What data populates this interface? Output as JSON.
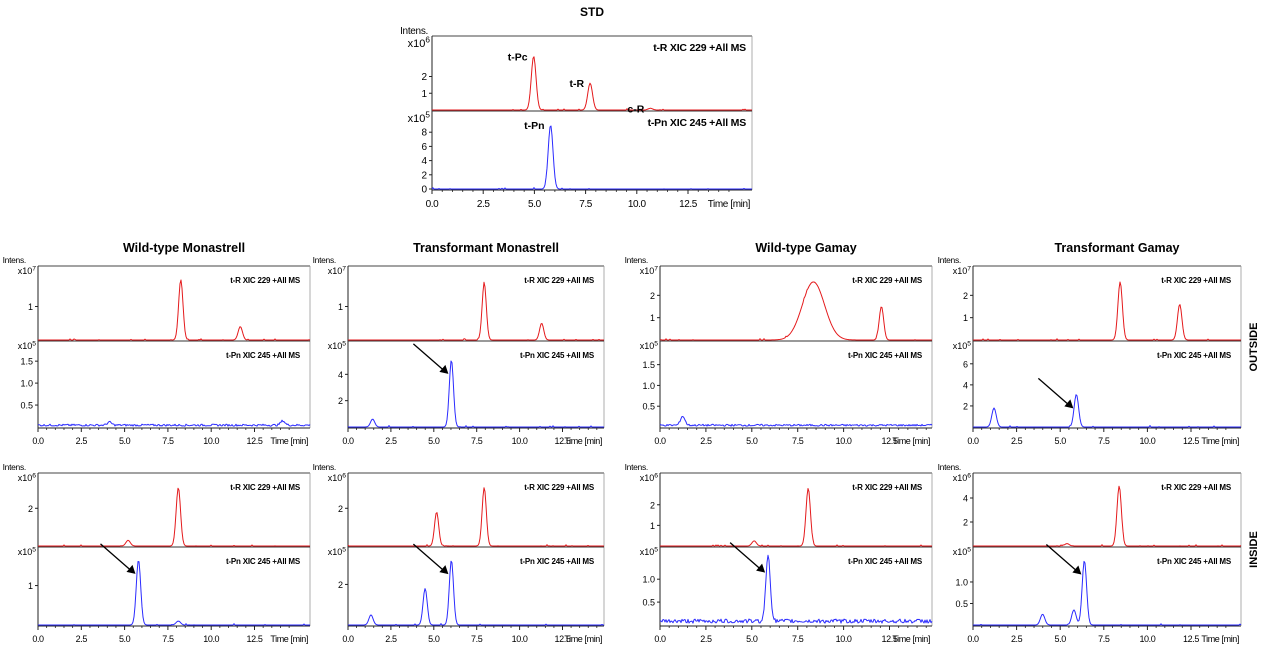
{
  "chart_data": [
    {
      "id": "std",
      "type": "line",
      "title": "STD",
      "ylabel": "Intens.",
      "xlabel": "Time [min]",
      "xlim": [
        0,
        17
      ],
      "x_ticks": [
        "0.0",
        "2.5",
        "5.0",
        "7.5",
        "10.0",
        "12.5"
      ],
      "series": [
        {
          "name": "t-R XIC 229 +All MS",
          "color": "#e41a1c",
          "y_exponent": "x10^6",
          "y_ticks": [
            "1",
            "2"
          ],
          "ylim": [
            0,
            4
          ],
          "peaks": [
            {
              "x": 5.4,
              "y": 3.2
            },
            {
              "x": 8.4,
              "y": 1.6
            },
            {
              "x": 11.6,
              "y": 0.1
            }
          ],
          "peak_labels": [
            {
              "text": "t-Pc",
              "x": 5.4,
              "y": 3.2
            },
            {
              "text": "t-R",
              "x": 8.4,
              "y": 1.6
            },
            {
              "text": "c-R",
              "x": 11.6,
              "y": 0.1
            }
          ]
        },
        {
          "name": "t-Pn  XIC 245 +All MS",
          "color": "#2b2bff",
          "y_exponent": "x10^5",
          "y_ticks": [
            "0",
            "2",
            "4",
            "6",
            "8"
          ],
          "ylim": [
            0,
            10
          ],
          "peaks": [
            {
              "x": 6.3,
              "y": 9.0
            }
          ],
          "peak_labels": [
            {
              "text": "t-Pn",
              "x": 6.3,
              "y": 9.0
            }
          ]
        }
      ]
    },
    {
      "id": "wt-mon-out",
      "type": "line",
      "title": "Wild-type Monastrell",
      "ylabel": "Intens.",
      "xlabel": "Time [min]",
      "xlim": [
        0,
        16
      ],
      "x_ticks": [
        "0.0",
        "2.5",
        "5.0",
        "7.5",
        "10.0",
        "12.5"
      ],
      "series": [
        {
          "name": "t-R  XIC 229 +All MS",
          "color": "#e41a1c",
          "y_exponent": "x10^7",
          "y_ticks": [
            "1"
          ],
          "ylim": [
            0,
            2
          ],
          "peaks": [
            {
              "x": 8.4,
              "y": 1.8
            },
            {
              "x": 11.9,
              "y": 0.4
            }
          ]
        },
        {
          "name": "t-Pn  XIC 245 +All MS",
          "color": "#2b2bff",
          "y_exponent": "x10^5",
          "y_ticks": [
            "0.5",
            "1.0",
            "1.5"
          ],
          "ylim": [
            0,
            1.8
          ],
          "peaks": [
            {
              "x": 14.4,
              "y": 0.1
            },
            {
              "x": 4.2,
              "y": 0.07
            }
          ],
          "baseline": 0.05
        }
      ]
    },
    {
      "id": "tr-mon-out",
      "type": "line",
      "title": "Transformant Monastrell",
      "ylabel": "Intens.",
      "xlabel": "Time [min]",
      "xlim": [
        0,
        15.6
      ],
      "x_ticks": [
        "0.0",
        "2.5",
        "5.0",
        "7.5",
        "10.0",
        "12.5"
      ],
      "series": [
        {
          "name": "t-R  XIC 229 +All MS",
          "color": "#e41a1c",
          "y_exponent": "x10^7",
          "y_ticks": [
            "1"
          ],
          "ylim": [
            0,
            2
          ],
          "peaks": [
            {
              "x": 8.3,
              "y": 1.7
            },
            {
              "x": 11.8,
              "y": 0.5
            }
          ]
        },
        {
          "name": "t-Pn  XIC 245 +All MS",
          "color": "#2b2bff",
          "y_exponent": "x10^5",
          "y_ticks": [
            "2",
            "4"
          ],
          "ylim": [
            0,
            6
          ],
          "peaks": [
            {
              "x": 6.3,
              "y": 5.1
            },
            {
              "x": 1.5,
              "y": 0.6
            }
          ],
          "arrow_at": 6.3
        }
      ]
    },
    {
      "id": "wt-gam-out",
      "type": "line",
      "title": "Wild-type Gamay",
      "ylabel": "Intens.",
      "xlabel": "Time [min]",
      "xlim": [
        0,
        15.6
      ],
      "x_ticks": [
        "0.0",
        "2.5",
        "5.0",
        "7.5",
        "10.0",
        "12.5"
      ],
      "series": [
        {
          "name": "t-R  XIC 229 +All MS",
          "color": "#e41a1c",
          "y_exponent": "x10^7",
          "y_ticks": [
            "1",
            "2"
          ],
          "ylim": [
            0,
            3
          ],
          "peaks": [
            {
              "x": 8.8,
              "y": 2.6,
              "w": 0.9
            },
            {
              "x": 12.7,
              "y": 1.5
            }
          ]
        },
        {
          "name": "t-Pn  XIC 245 +All MS",
          "color": "#2b2bff",
          "y_exponent": "x10^5",
          "y_ticks": [
            "0.5",
            "1.0",
            "1.5"
          ],
          "ylim": [
            0,
            1.9
          ],
          "peaks": [
            {
              "x": 1.3,
              "y": 0.22
            }
          ],
          "baseline": 0.05
        }
      ]
    },
    {
      "id": "tr-gam-out",
      "type": "line",
      "title": "Transformant Gamay",
      "ylabel": "Intens.",
      "xlabel": "Time [min]",
      "xlim": [
        0,
        15.3
      ],
      "x_ticks": [
        "0.0",
        "2.5",
        "5.0",
        "7.5",
        "10.0",
        "12.5"
      ],
      "side_label": "OUTSIDE",
      "series": [
        {
          "name": "t-R  XIC 229 +All MS",
          "color": "#e41a1c",
          "y_exponent": "x10^7",
          "y_ticks": [
            "1",
            "2"
          ],
          "ylim": [
            0,
            3
          ],
          "peaks": [
            {
              "x": 8.4,
              "y": 2.6
            },
            {
              "x": 11.8,
              "y": 1.6
            }
          ]
        },
        {
          "name": "t-Pn  XIC 245 +All MS",
          "color": "#2b2bff",
          "y_exponent": "x10^5",
          "y_ticks": [
            "2",
            "4",
            "6"
          ],
          "ylim": [
            0,
            7.5
          ],
          "peaks": [
            {
              "x": 5.9,
              "y": 3.1
            },
            {
              "x": 1.2,
              "y": 1.8
            }
          ],
          "arrow_at": 5.9
        }
      ]
    },
    {
      "id": "wt-mon-in",
      "type": "line",
      "title": "",
      "ylabel": "Intens.",
      "xlabel": "Time [min]",
      "xlim": [
        0,
        15.7
      ],
      "x_ticks": [
        "0.0",
        "2.5",
        "5.0",
        "7.5",
        "10.0",
        "12.5"
      ],
      "series": [
        {
          "name": "t-R  XIC 229 +All MS",
          "color": "#e41a1c",
          "y_exponent": "x10^6",
          "y_ticks": [
            "2"
          ],
          "ylim": [
            0,
            3.5
          ],
          "peaks": [
            {
              "x": 8.1,
              "y": 3.1
            },
            {
              "x": 5.2,
              "y": 0.3
            }
          ]
        },
        {
          "name": "t-Pn  XIC 245 +All MS",
          "color": "#2b2bff",
          "y_exponent": "x10^5",
          "y_ticks": [
            "1"
          ],
          "ylim": [
            0,
            1.8
          ],
          "peaks": [
            {
              "x": 5.8,
              "y": 1.65
            },
            {
              "x": 8.1,
              "y": 0.1
            }
          ],
          "arrow_at": 5.8
        }
      ]
    },
    {
      "id": "tr-mon-in",
      "type": "line",
      "title": "",
      "ylabel": "Intens.",
      "xlabel": "Time [min]",
      "xlim": [
        0,
        15.6
      ],
      "x_ticks": [
        "0.0",
        "2.5",
        "5.0",
        "7.5",
        "10.0",
        "12.5"
      ],
      "series": [
        {
          "name": "t-R  XIC 229 +All MS",
          "color": "#e41a1c",
          "y_exponent": "x10^6",
          "y_ticks": [
            "2"
          ],
          "ylim": [
            0,
            3.5
          ],
          "peaks": [
            {
              "x": 8.3,
              "y": 3.1
            },
            {
              "x": 5.4,
              "y": 1.8
            }
          ]
        },
        {
          "name": "t-Pn  XIC 245 +All MS",
          "color": "#2b2bff",
          "y_exponent": "x10^5",
          "y_ticks": [
            "2"
          ],
          "ylim": [
            0,
            3.5
          ],
          "peaks": [
            {
              "x": 6.3,
              "y": 3.2
            },
            {
              "x": 4.7,
              "y": 1.8
            },
            {
              "x": 1.4,
              "y": 0.5
            }
          ],
          "arrow_at": 6.3
        }
      ]
    },
    {
      "id": "wt-gam-in",
      "type": "line",
      "title": "",
      "ylabel": "Intens.",
      "xlabel": "Time [min]",
      "xlim": [
        0,
        15.6
      ],
      "x_ticks": [
        "0.0",
        "2.5",
        "5.0",
        "7.5",
        "10.0",
        "12.5"
      ],
      "series": [
        {
          "name": "t-R  XIC 229 +All MS",
          "color": "#e41a1c",
          "y_exponent": "x10^6",
          "y_ticks": [
            "1",
            "2"
          ],
          "ylim": [
            0,
            3.2
          ],
          "peaks": [
            {
              "x": 8.5,
              "y": 2.8
            },
            {
              "x": 5.4,
              "y": 0.25
            }
          ]
        },
        {
          "name": "t-Pn  XIC 245 +All MS",
          "color": "#2b2bff",
          "y_exponent": "x10^5",
          "y_ticks": [
            "0.5",
            "1.0"
          ],
          "ylim": [
            0,
            1.55
          ],
          "peaks": [
            {
              "x": 6.2,
              "y": 1.45
            }
          ],
          "baseline": 0.1,
          "arrow_at": 6.2
        }
      ]
    },
    {
      "id": "tr-gam-in",
      "type": "line",
      "title": "",
      "ylabel": "Intens.",
      "xlabel": "Time [min]",
      "xlim": [
        0,
        15.4
      ],
      "x_ticks": [
        "0.0",
        "2.5",
        "5.0",
        "7.5",
        "10.0",
        "12.5"
      ],
      "side_label": "INSIDE",
      "series": [
        {
          "name": "t-R  XIC 229 +All MS",
          "color": "#e41a1c",
          "y_exponent": "x10^6",
          "y_ticks": [
            "2",
            "4"
          ],
          "ylim": [
            0,
            5.5
          ],
          "peaks": [
            {
              "x": 8.4,
              "y": 5.0
            },
            {
              "x": 5.4,
              "y": 0.2
            }
          ]
        },
        {
          "name": "t-Pn  XIC 245 +All MS",
          "color": "#2b2bff",
          "y_exponent": "x10^5",
          "y_ticks": [
            "0.5",
            "1.0"
          ],
          "ylim": [
            0,
            1.65
          ],
          "peaks": [
            {
              "x": 6.4,
              "y": 1.5
            },
            {
              "x": 5.8,
              "y": 0.35
            },
            {
              "x": 4.0,
              "y": 0.25
            }
          ],
          "arrow_at": 6.4
        }
      ]
    }
  ]
}
